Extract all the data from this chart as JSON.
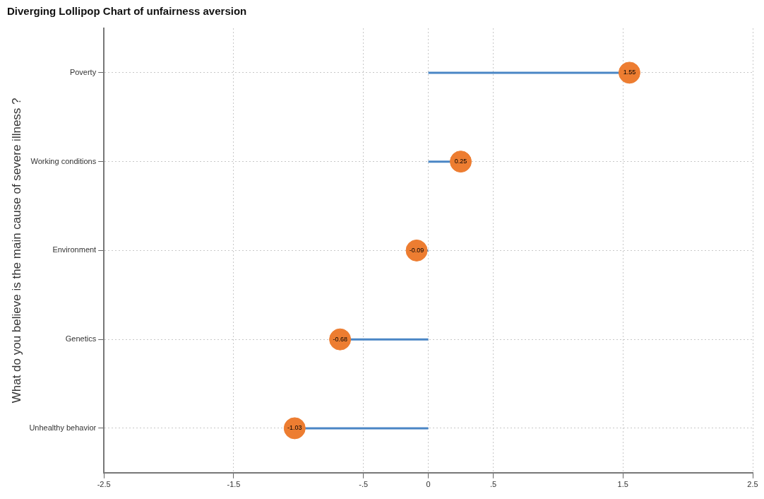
{
  "chart_data": {
    "type": "lollipop",
    "orientation": "horizontal",
    "title": "Diverging Lollipop Chart of unfairness aversion",
    "ylabel": "What do you believe is the main cause of severe illness ?",
    "categories": [
      "Poverty",
      "Working conditions",
      "Environment",
      "Genetics",
      "Unhealthy behavior"
    ],
    "values": [
      1.55,
      0.25,
      -0.09,
      -0.68,
      -1.03
    ],
    "color": "#ed7d31",
    "marker": "circle",
    "data_labels": true,
    "xlim": [
      -2.5,
      2.5
    ],
    "xticks": [
      {
        "value": -2.5,
        "label": "-2.5"
      },
      {
        "value": -1.5,
        "label": "-1.5"
      },
      {
        "value": -0.5,
        "label": "-.5"
      },
      0,
      {
        "value": 0.5,
        "label": ".5"
      },
      {
        "value": 1.5,
        "label": "1.5"
      },
      {
        "value": 2.5,
        "label": "2.5"
      }
    ],
    "grid": true
  }
}
